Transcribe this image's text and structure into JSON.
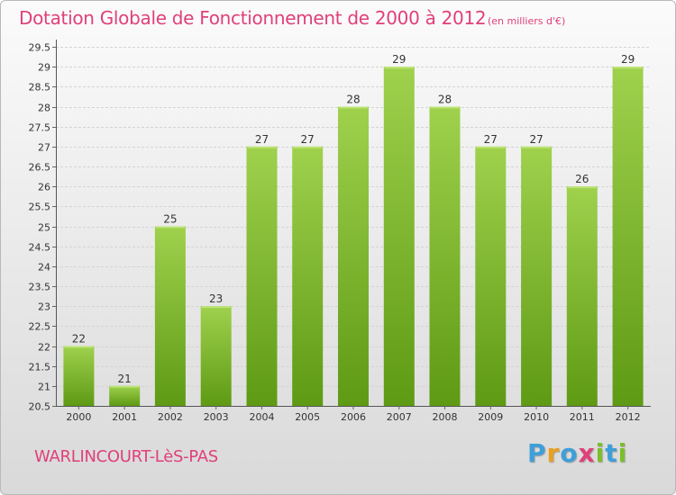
{
  "header": {
    "title": "Dotation Globale de Fonctionnement de 2000 à 2012",
    "unit": "(en milliers d'€)"
  },
  "footer": {
    "commune": "WARLINCOURT-LèS-PAS",
    "logo_letters": [
      "P",
      "r",
      "o",
      "x",
      "i",
      "t",
      "i"
    ],
    "logo_colors": [
      "#3f9fd8",
      "#e8a020",
      "#3f9fd8",
      "#e0407a",
      "#7bbf2a",
      "#3f9fd8",
      "#7bbf2a"
    ]
  },
  "colors": {
    "bar_light": "#9fd14d",
    "bar_dark": "#5e9a14",
    "grid": "#d4d4d4",
    "text": "#333333"
  },
  "chart_data": {
    "type": "bar",
    "title": "Dotation Globale de Fonctionnement de 2000 à 2012",
    "subtitle": "(en milliers d'€)",
    "xlabel": "",
    "ylabel": "",
    "categories": [
      "2000",
      "2001",
      "2002",
      "2003",
      "2004",
      "2005",
      "2006",
      "2007",
      "2008",
      "2009",
      "2010",
      "2011",
      "2012"
    ],
    "values": [
      22,
      21,
      25,
      23,
      27,
      27,
      28,
      29,
      28,
      27,
      27,
      26,
      29
    ],
    "ylim": [
      20.5,
      29.5
    ],
    "yticks": [
      "20.5",
      "21",
      "21.5",
      "22",
      "22.5",
      "23",
      "23.5",
      "24",
      "24.5",
      "25",
      "25.5",
      "26",
      "26.5",
      "27",
      "27.5",
      "28",
      "28.5",
      "29",
      "29.5"
    ],
    "grid": true,
    "legend": "none"
  }
}
